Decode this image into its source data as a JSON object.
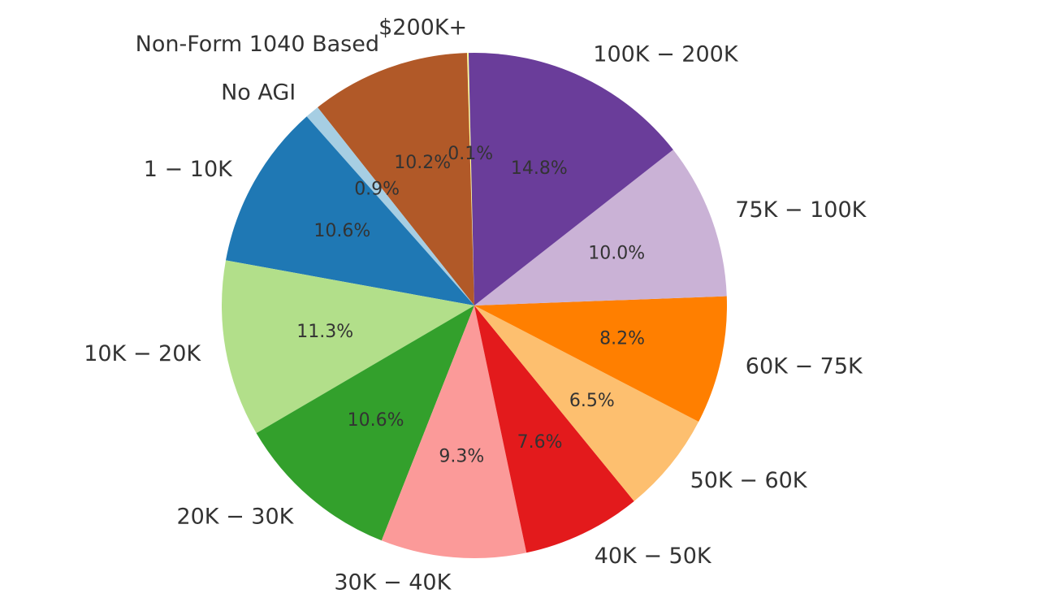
{
  "chart_data": {
    "type": "pie",
    "title": "",
    "start_angle_deg": 91.3,
    "direction": "counterclockwise",
    "slices": [
      {
        "label": "$200K+",
        "value": 0.1,
        "pct_label": "0.1%",
        "color": "#ffff99"
      },
      {
        "label": "Non-Form 1040 Based",
        "value": 10.2,
        "pct_label": "10.2%",
        "color": "#b15928"
      },
      {
        "label": "No AGI",
        "value": 0.9,
        "pct_label": "0.9%",
        "color": "#a6cee3"
      },
      {
        "label": "1 − 10K",
        "value": 10.6,
        "pct_label": "10.6%",
        "color": "#1f78b4"
      },
      {
        "label": "10K − 20K",
        "value": 11.3,
        "pct_label": "11.3%",
        "color": "#b2df8a"
      },
      {
        "label": "20K − 30K",
        "value": 10.6,
        "pct_label": "10.6%",
        "color": "#33a02c"
      },
      {
        "label": "30K − 40K",
        "value": 9.3,
        "pct_label": "9.3%",
        "color": "#fb9a99"
      },
      {
        "label": "40K − 50K",
        "value": 7.6,
        "pct_label": "7.6%",
        "color": "#e31a1c"
      },
      {
        "label": "50K − 60K",
        "value": 6.5,
        "pct_label": "6.5%",
        "color": "#fdbf6f"
      },
      {
        "label": "60K − 75K",
        "value": 8.2,
        "pct_label": "8.2%",
        "color": "#ff7f00"
      },
      {
        "label": "75K − 100K",
        "value": 10.0,
        "pct_label": "10.0%",
        "color": "#cab2d6"
      },
      {
        "label": "100K − 200K",
        "value": 14.8,
        "pct_label": "14.8%",
        "color": "#6a3d9a"
      }
    ]
  }
}
